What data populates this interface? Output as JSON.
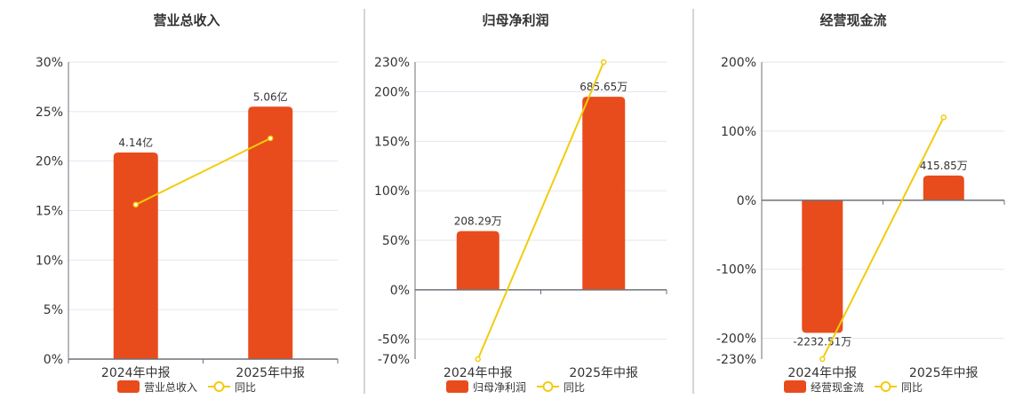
{
  "colors": {
    "bar": "#E84C1C",
    "line": "#F2CC0C",
    "grid": "#E1E6F0",
    "axis": "#6E7079",
    "divider": "#AAAAAA"
  },
  "chart_data": [
    {
      "type": "bar+line",
      "title": "营业总收入",
      "categories": [
        "2024年中报",
        "2025年中报"
      ],
      "bar_series": {
        "name": "营业总收入",
        "values": [
          4.14,
          5.06
        ],
        "labels": [
          "4.14亿",
          "5.06亿"
        ],
        "unit": "亿"
      },
      "line_series": {
        "name": "同比",
        "values": [
          15.6,
          22.3
        ],
        "unit": "%"
      },
      "y_ticks": [
        0,
        5,
        10,
        15,
        20,
        25,
        30
      ],
      "y_tick_labels": [
        "0%",
        "5%",
        "10%",
        "15%",
        "20%",
        "25%",
        "30%"
      ],
      "ylim": [
        0,
        30
      ],
      "grid": true,
      "legend": "bottom"
    },
    {
      "type": "bar+line",
      "title": "归母净利润",
      "categories": [
        "2024年中报",
        "2025年中报"
      ],
      "bar_series": {
        "name": "归母净利润",
        "values": [
          208.29,
          685.65
        ],
        "labels": [
          "208.29万",
          "685.65万"
        ],
        "unit": "万"
      },
      "line_series": {
        "name": "同比",
        "values": [
          -70,
          230
        ],
        "unit": "%"
      },
      "y_ticks": [
        -70,
        -50,
        0,
        50,
        100,
        150,
        200,
        230
      ],
      "y_tick_labels": [
        "-70%",
        "-50%",
        "0%",
        "50%",
        "100%",
        "150%",
        "200%",
        "230%"
      ],
      "ylim": [
        -70,
        230
      ],
      "grid": true,
      "legend": "bottom"
    },
    {
      "type": "bar+line",
      "title": "经营现金流",
      "categories": [
        "2024年中报",
        "2025年中报"
      ],
      "bar_series": {
        "name": "经营现金流",
        "values": [
          -2232.51,
          415.85
        ],
        "labels": [
          "-2232.51万",
          "415.85万"
        ],
        "unit": "万"
      },
      "line_series": {
        "name": "同比",
        "values": [
          -230,
          120
        ],
        "unit": "%"
      },
      "y_ticks": [
        -230,
        -200,
        -100,
        0,
        100,
        200
      ],
      "y_tick_labels": [
        "-230%",
        "-200%",
        "-100%",
        "0%",
        "100%",
        "200%"
      ],
      "ylim": [
        -230,
        200
      ],
      "grid": true,
      "legend": "bottom"
    }
  ]
}
